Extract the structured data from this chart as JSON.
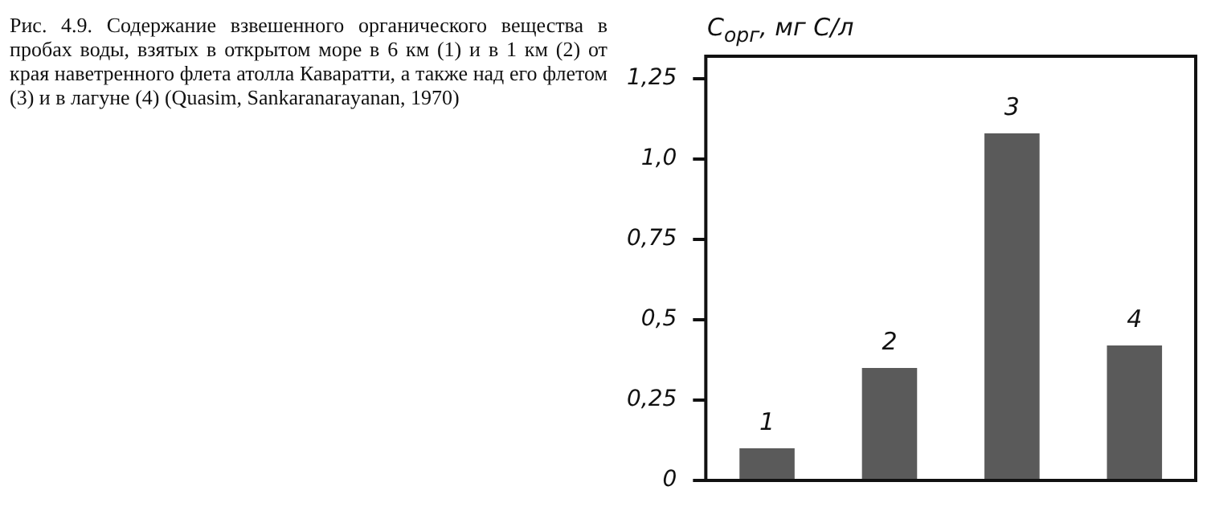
{
  "chart_data": {
    "type": "bar",
    "title": "Рис. 4.9. Содержание взвешенного органического вещества в пробах воды, взятых в открытом море в 6 км (1) и в 1 км (2) от края наветренного флета атолла Каваратти, а также над его флетом (3) и в лагуне (4) (Quasim, Sankaranarayanan, 1970)",
    "ylabel": "C$_{орг}$, мг С/л",
    "categories": [
      "1",
      "2",
      "3",
      "4"
    ],
    "values": [
      0.1,
      0.35,
      1.08,
      0.42
    ],
    "color": "#5a5a5a",
    "ylim": [
      0,
      1.32
    ],
    "yticks": [
      {
        "value": 0,
        "label": "0"
      },
      {
        "value": 0.25,
        "label": "0,25"
      },
      {
        "value": 0.5,
        "label": "0,5"
      },
      {
        "value": 0.75,
        "label": "0,75"
      },
      {
        "value": 1,
        "label": "1,0"
      },
      {
        "value": 1.25,
        "label": "1,25"
      }
    ],
    "grid": false,
    "legend": false
  }
}
